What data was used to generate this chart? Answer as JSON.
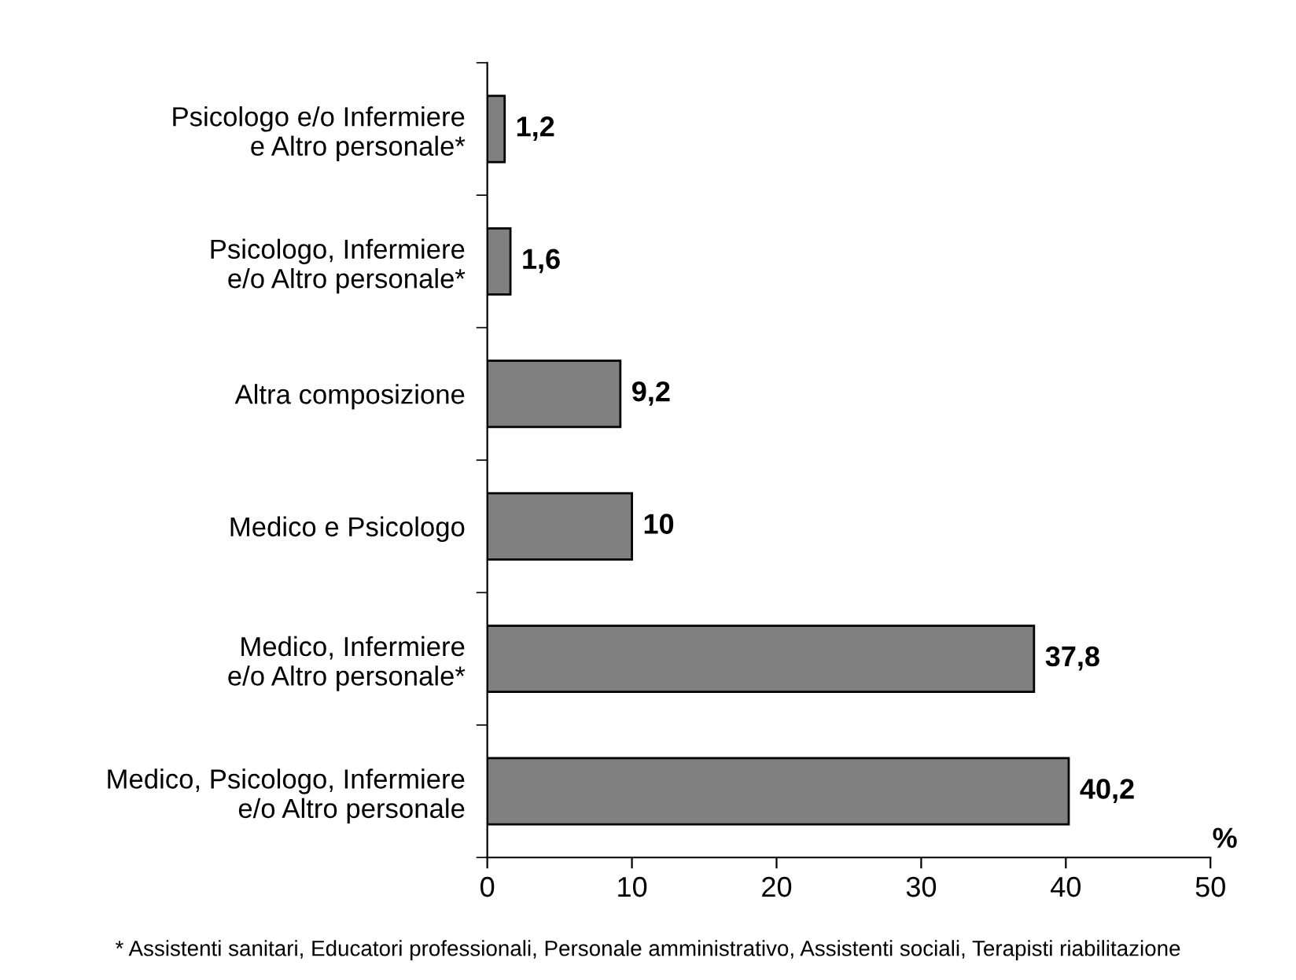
{
  "chart_data": {
    "type": "bar",
    "orientation": "horizontal",
    "categories": [
      "Psicologo e/o Infermiere\ne Altro personale*",
      "Psicologo, Infermiere\ne/o Altro personale*",
      "Altra composizione",
      "Medico e Psicologo",
      "Medico, Infermiere\ne/o Altro personale*",
      "Medico, Psicologo, Infermiere\ne/o Altro personale"
    ],
    "values": [
      1.2,
      1.6,
      9.2,
      10,
      37.8,
      40.2
    ],
    "value_labels": [
      "1,2",
      "1,6",
      "9,2",
      "10",
      "37,8",
      "40,2"
    ],
    "color": "#808080",
    "xlabel": "%",
    "xlim": [
      0,
      50
    ],
    "xticks": [
      0,
      10,
      20,
      30,
      40,
      50
    ],
    "grid": false,
    "legend": false,
    "annotations": [
      "* Assistenti sanitari, Educatori professionali, Personale amministrativo, Assistenti sociali, Terapisti riabilitazione"
    ]
  }
}
